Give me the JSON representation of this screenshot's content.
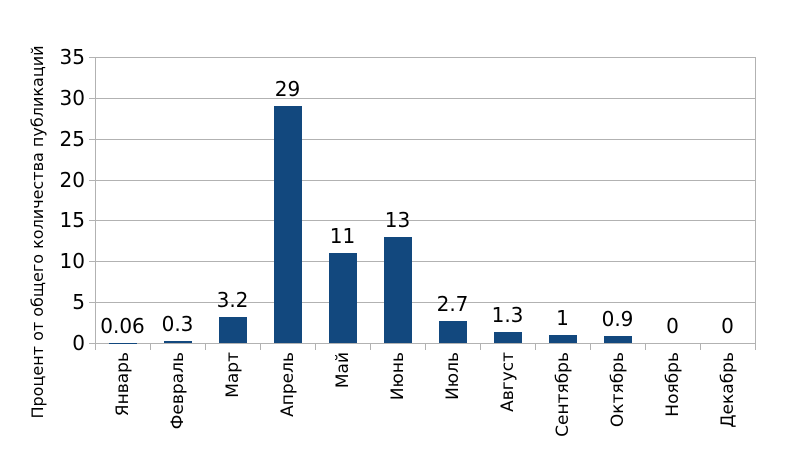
{
  "chart_data": {
    "type": "bar",
    "title": "",
    "xlabel": "",
    "ylabel": "Процент от общего количества публикаций",
    "categories": [
      "Январь",
      "Февраль",
      "Март",
      "Апрель",
      "Май",
      "Июнь",
      "Июль",
      "Август",
      "Сентябрь",
      "Октябрь",
      "Ноябрь",
      "Декабрь"
    ],
    "values": [
      0.06,
      0.3,
      3.2,
      29,
      11,
      13,
      2.7,
      1.3,
      1,
      0.9,
      0,
      0
    ],
    "value_labels": [
      "0.06",
      "0.3",
      "3.2",
      "29",
      "11",
      "13",
      "2.7",
      "1.3",
      "1",
      "0.9",
      "0",
      "0"
    ],
    "ylim": [
      0,
      35
    ],
    "yticks": [
      0,
      5,
      10,
      15,
      20,
      25,
      30,
      35
    ],
    "grid": "horizontal",
    "legend": "none",
    "colors": {
      "bar": "#12487e",
      "grid": "#b2b2b2",
      "text": "#000000",
      "background": "#ffffff"
    }
  }
}
